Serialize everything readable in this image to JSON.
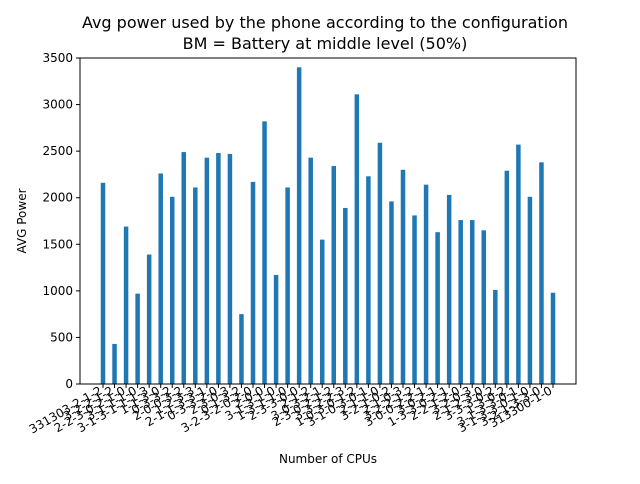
{
  "chart_data": {
    "type": "bar",
    "title_line1": "Avg power used by the phone according to the configuration",
    "title_line2": "BM = Battery at middle level (50%)",
    "xlabel": "Number of CPUs",
    "ylabel": "AVG Power",
    "ylim": [
      0,
      3500
    ],
    "yticks": [
      0,
      500,
      1000,
      1500,
      2000,
      2500,
      3000,
      3500
    ],
    "grid": false,
    "bar_color": "#1f77b4",
    "categories": [
      "331303-2-1-2",
      "3-2-2-1-2",
      "2-2-3-0-2-1-0",
      "3-1-1-1-0",
      "3-1-3-1-1-1-3",
      "1-1-3-0",
      "0-3-3-2",
      "2-0-0-3-2",
      "1-2-3-3",
      "2-1-1-3-3-1",
      "0-3-3-2-0",
      "2-3-0-3",
      "0-1-3-2",
      "3-2-3-2-0-2-0",
      "2-0-0",
      "3-1-3-1-0",
      "1-3-1-1-0",
      "2-3-3-0-0",
      "2-1-2",
      "3-0-3-2-1",
      "2-3-0-2-1-2",
      "3-3-2-2-3",
      "1-0-3-0-1-2",
      "3-1-0-3-0-1",
      "2-1-1-0",
      "3-2-1-0-2",
      "2-1-0-3",
      "3-2-2-1-2",
      "3-0-0-2-2-1",
      "3-0-2-1",
      "1-3-3-0-2-1",
      "2-2-1-2-0",
      "3-2-0-3",
      "2-1-2-3-0",
      "3-3-3-0-2",
      "1-3-0-2",
      "3-1-3-3-0-1",
      "3-1-3-3-0-1-0",
      "3-2-1-3-3-0",
      "313300-1-0"
    ],
    "values": [
      2160,
      430,
      1690,
      970,
      1390,
      2260,
      2010,
      2490,
      2110,
      2430,
      2480,
      2470,
      750,
      2170,
      2820,
      1170,
      2110,
      3400,
      2430,
      1550,
      2340,
      1890,
      3110,
      2230,
      2590,
      1960,
      2300,
      1810,
      2140,
      1630,
      2030,
      1760,
      1760,
      1650,
      1010,
      2290,
      2570,
      2010,
      2380,
      980
    ]
  }
}
